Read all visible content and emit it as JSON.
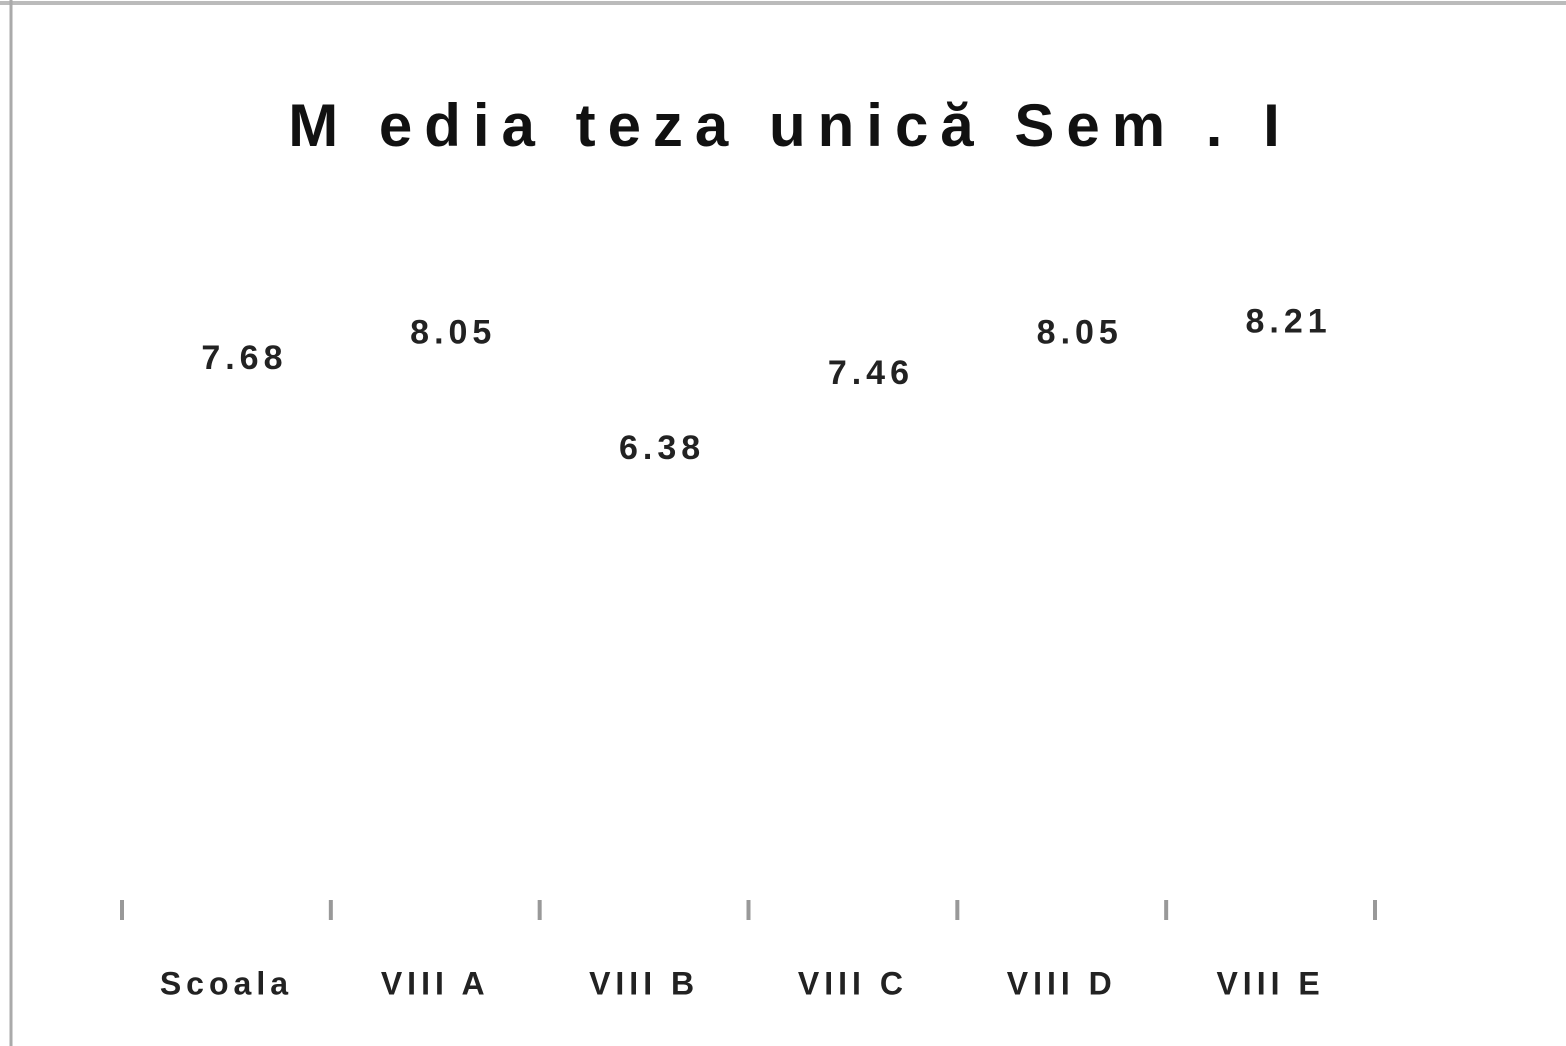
{
  "chart_data": {
    "type": "bar",
    "title": "M edia teza unică Sem . I",
    "categories": [
      "Scoala",
      "VIII A",
      "VIII B",
      "VIII C",
      "VIII D",
      "VIII E"
    ],
    "values": [
      7.68,
      8.05,
      6.38,
      7.46,
      8.05,
      8.21
    ],
    "value_labels": [
      "7.68",
      "8.05",
      "6.38",
      "7.46",
      "8.05",
      "8.21"
    ],
    "color": "#ffffff",
    "ylim": [
      0,
      10
    ]
  }
}
